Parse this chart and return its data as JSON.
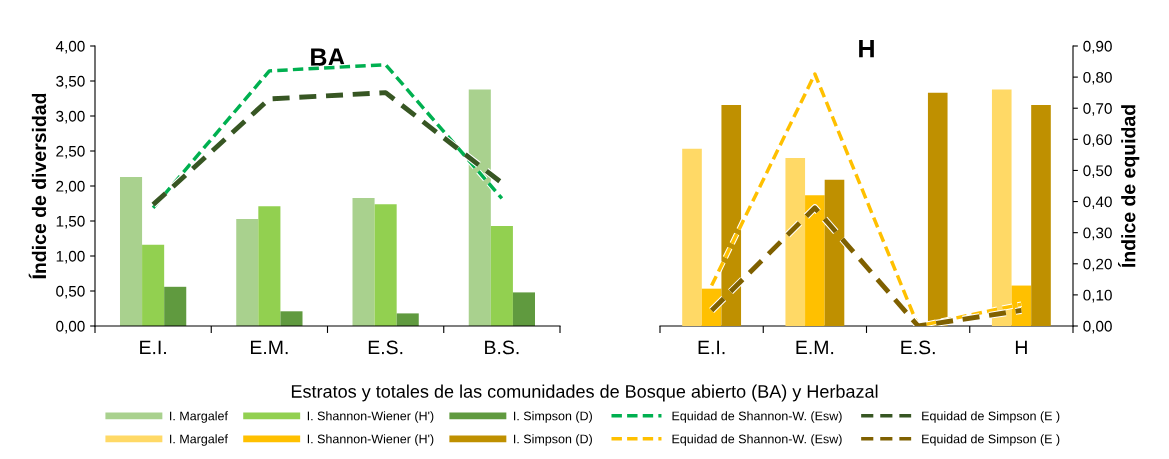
{
  "chart_data": [
    {
      "type": "bar",
      "title": "BA",
      "ylabel": "Índice de diversidad",
      "xlabel": "Estratos y totales de las comunidades de Bosque abierto (BA) y Herbazal",
      "categories": [
        "E.I.",
        "E.M.",
        "E.S.",
        "B.S."
      ],
      "ylim": [
        0,
        4
      ],
      "yticks": [
        {
          "value": 0,
          "label": "0,00"
        },
        {
          "value": 0.5,
          "label": "0,50"
        },
        {
          "value": 1,
          "label": "1,00"
        },
        {
          "value": 1.5,
          "label": "1,50"
        },
        {
          "value": 2,
          "label": "2,00"
        },
        {
          "value": 2.5,
          "label": "2,50"
        },
        {
          "value": 3,
          "label": "3,00"
        },
        {
          "value": 3.5,
          "label": "3,50"
        },
        {
          "value": 4,
          "label": "4,00"
        }
      ],
      "y2lim": [
        0,
        0.9
      ],
      "legend": "bottom",
      "grid": false,
      "series": [
        {
          "name": "I. Margalef",
          "color": "#a9d18e",
          "values": [
            2.13,
            1.53,
            1.83,
            3.38
          ]
        },
        {
          "name": "I. Shannon-Wiener (H')",
          "color": "#92d050",
          "values": [
            1.16,
            1.71,
            1.74,
            1.43
          ]
        },
        {
          "name": "I. Simpson (D)",
          "color": "#609a3f",
          "values": [
            0.56,
            0.21,
            0.18,
            0.48
          ]
        },
        {
          "name": "Equidad de Shannon-W. (Esw)",
          "type": "line",
          "axis": "y2",
          "line_style": "dashed",
          "color": "#00b050",
          "values": [
            0.38,
            0.82,
            0.84,
            0.41
          ]
        },
        {
          "name": "Equidad de Simpson (E )",
          "type": "line",
          "axis": "y2",
          "line_style": "dashed",
          "color": "#375623",
          "values": [
            0.39,
            0.73,
            0.75,
            0.46
          ]
        }
      ]
    },
    {
      "type": "bar",
      "title": "H",
      "y2label": "Índice de equidad",
      "categories": [
        "E.I.",
        "E.M.",
        "E.S.",
        "H"
      ],
      "y2lim": [
        0,
        0.9
      ],
      "y2ticks": [
        {
          "value": 0,
          "label": "0,00"
        },
        {
          "value": 0.1,
          "label": "0,10"
        },
        {
          "value": 0.2,
          "label": "0,20"
        },
        {
          "value": 0.3,
          "label": "0,30"
        },
        {
          "value": 0.4,
          "label": "0,40"
        },
        {
          "value": 0.5,
          "label": "0,50"
        },
        {
          "value": 0.6,
          "label": "0,60"
        },
        {
          "value": 0.7,
          "label": "0,70"
        },
        {
          "value": 0.8,
          "label": "0,80"
        },
        {
          "value": 0.9,
          "label": "0,90"
        }
      ],
      "legend": "bottom",
      "grid": false,
      "series": [
        {
          "name": "I. Margalef",
          "color": "#ffd966",
          "axis": "y2",
          "values": [
            0.57,
            0.54,
            null,
            0.76
          ]
        },
        {
          "name": "I. Shannon-Wiener (H')",
          "color": "#ffc000",
          "axis": "y2",
          "values": [
            0.12,
            0.42,
            null,
            0.13
          ]
        },
        {
          "name": "I. Simpson (D)",
          "color": "#bf9000",
          "axis": "y2",
          "values": [
            0.71,
            0.47,
            0.75,
            0.71
          ]
        },
        {
          "name": "Equidad de Shannon-W. (Esw)",
          "type": "line",
          "axis": "y2",
          "line_style": "dashed",
          "color": "#ffc000",
          "values": [
            0.13,
            0.81,
            0.0,
            0.07
          ]
        },
        {
          "name": "Equidad de Simpson (E )",
          "type": "line",
          "axis": "y2",
          "line_style": "dashed",
          "color": "#7f6000",
          "values": [
            0.05,
            0.38,
            0.0,
            0.05
          ]
        }
      ]
    }
  ]
}
